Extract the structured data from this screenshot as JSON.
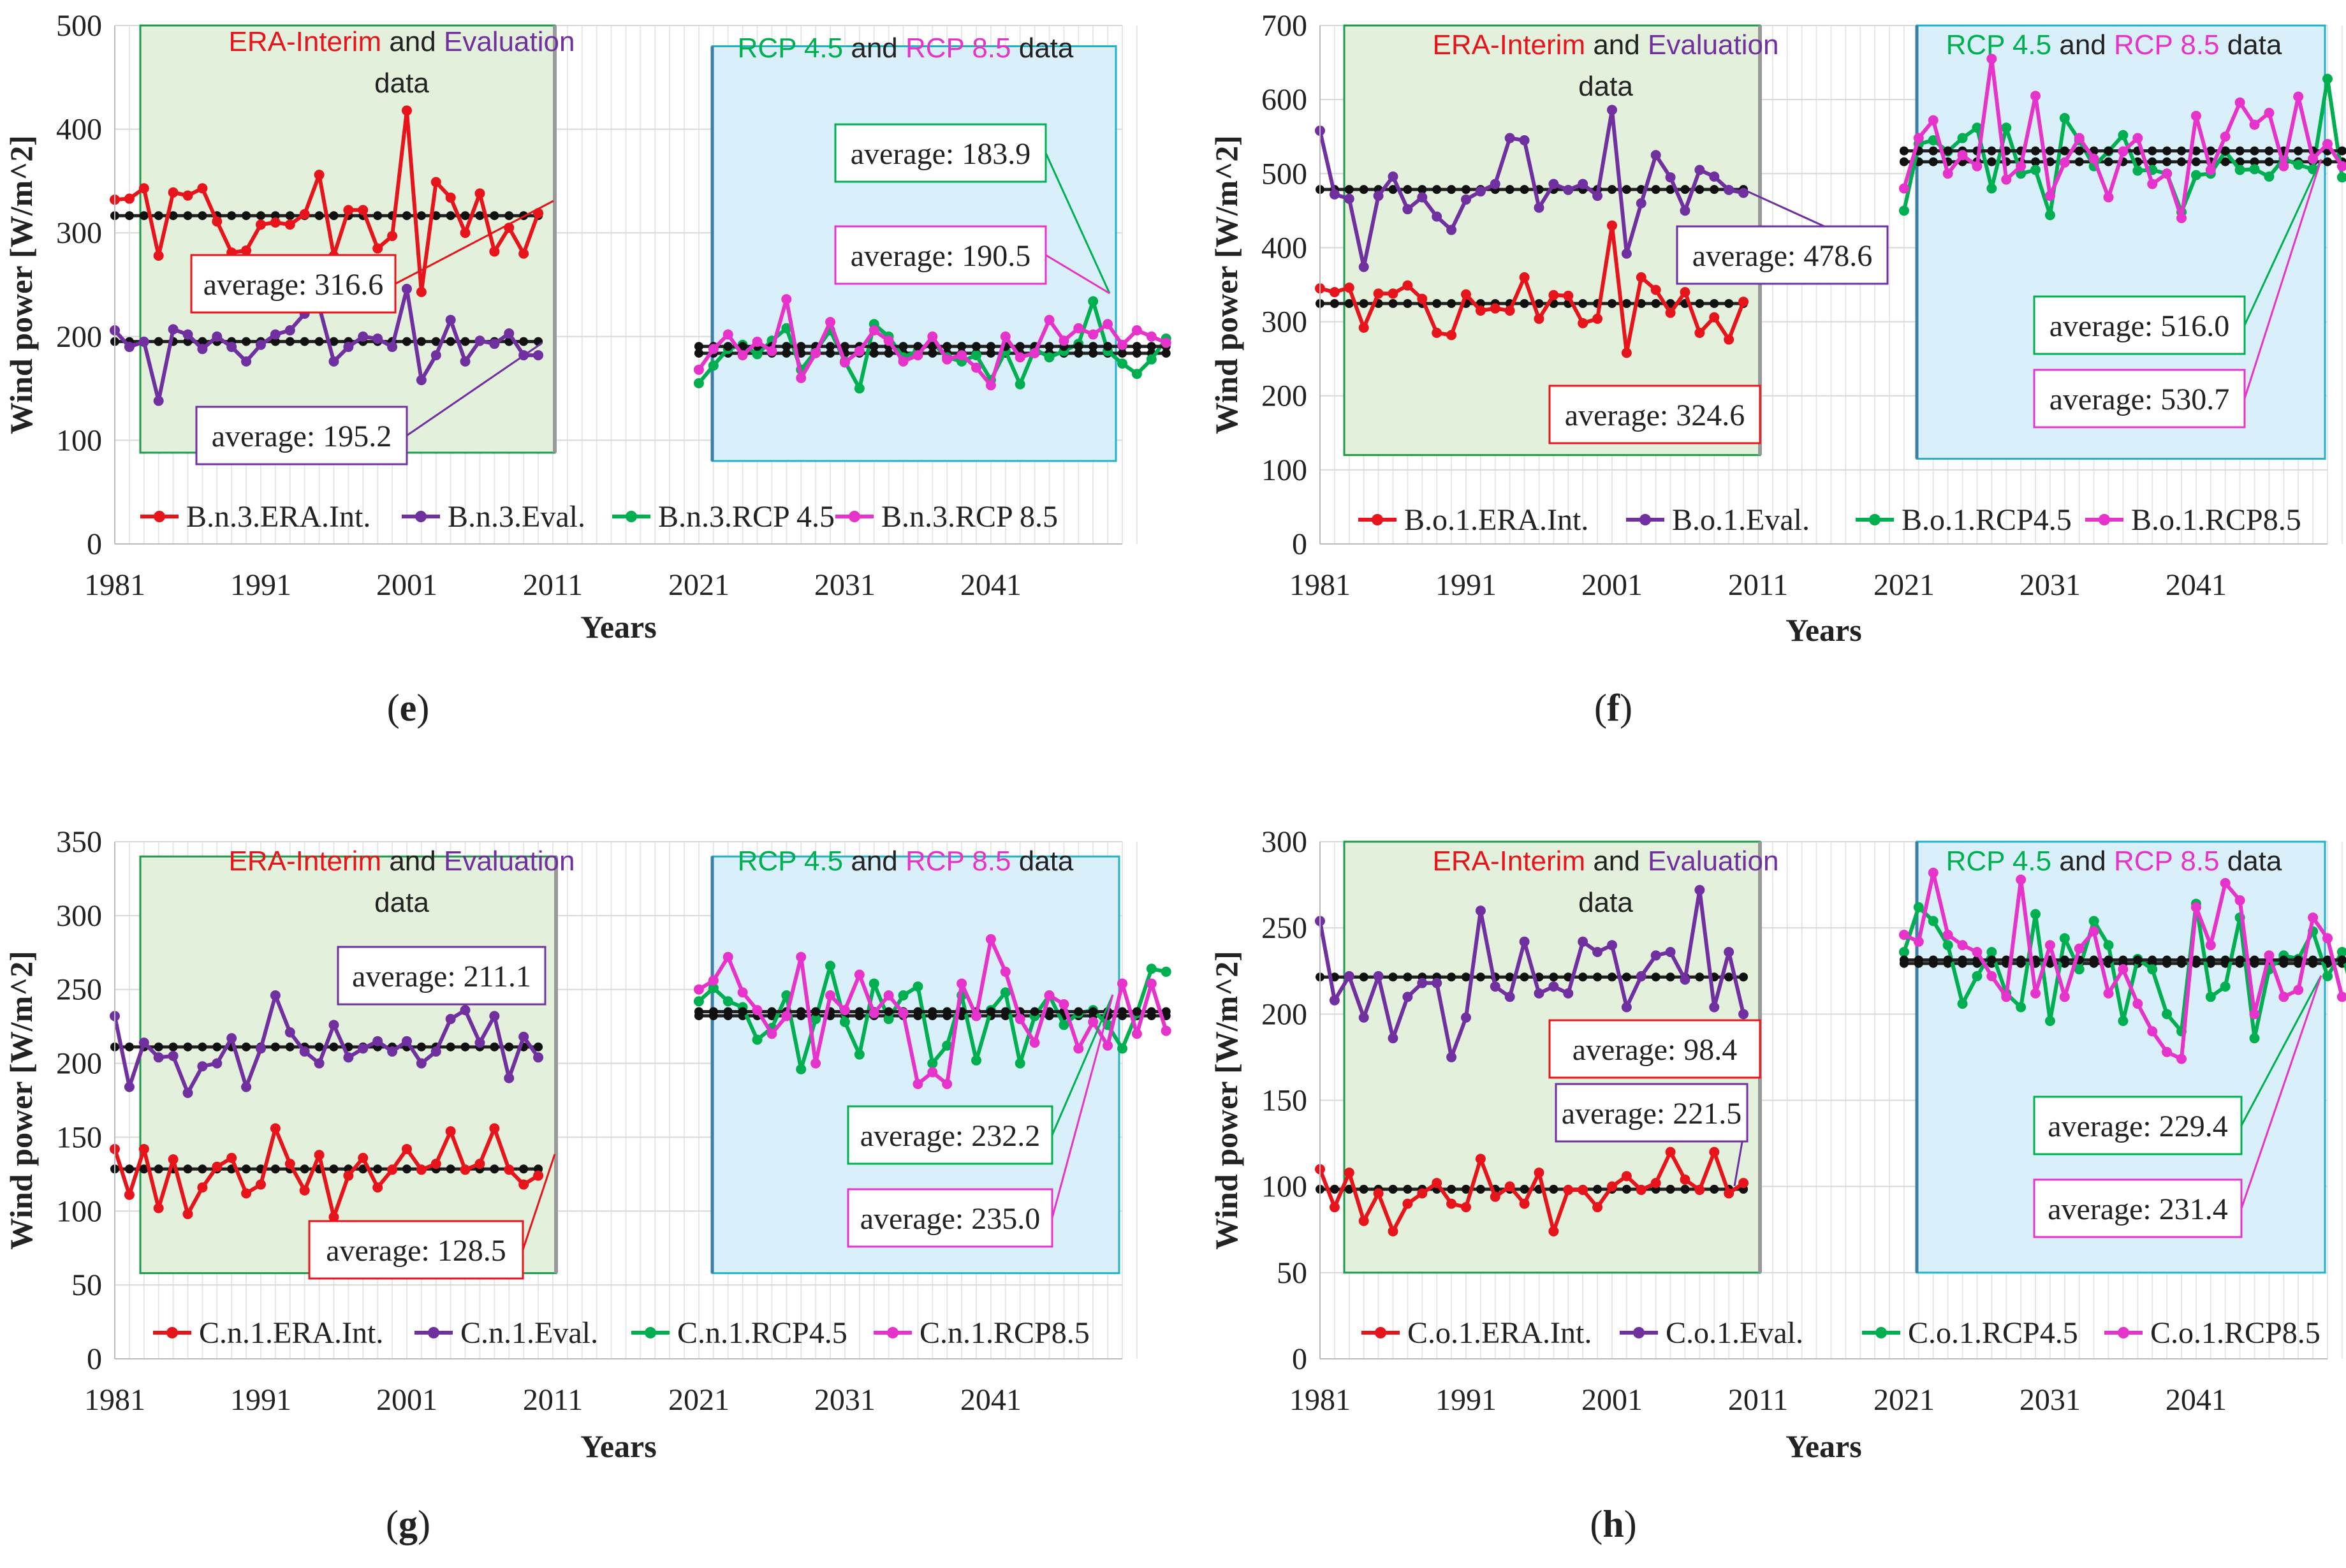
{
  "chart_data": [
    {
      "panel_label": "(e)",
      "type": "line",
      "xlabel": "Years",
      "ylabel": "Wind power [W/m^2]",
      "xlim": [
        1981,
        2050
      ],
      "xticks": [
        "1981",
        "1991",
        "2001",
        "2011",
        "2021",
        "2031",
        "2041"
      ],
      "ylim": [
        0,
        500
      ],
      "yticks": [
        "0",
        "100",
        "200",
        "300",
        "400",
        "500"
      ],
      "box_left_ylim": [
        88,
        500
      ],
      "box_right_ylim": [
        80,
        480
      ],
      "box_left_title": [
        "ERA-Interim",
        "and",
        "Evaluation",
        "data"
      ],
      "box_right_title": [
        "RCP 4.5",
        "and",
        "RCP 8.5",
        "data"
      ],
      "series": [
        {
          "name": "B.n.3.ERA.Int.",
          "color": "#e8141b",
          "start": 1981,
          "average": 316.6,
          "avg_label": "average: 316.6",
          "values": [
            332,
            333,
            343,
            278,
            339,
            336,
            343,
            311,
            281,
            283,
            308,
            310,
            308,
            318,
            356,
            278,
            322,
            322,
            285,
            297,
            418,
            243,
            349,
            334,
            300,
            338,
            282,
            305,
            280,
            319
          ]
        },
        {
          "name": "B.n.3.Eval.",
          "color": "#7030a0",
          "start": 1981,
          "average": 195.2,
          "avg_label": "average: 195.2",
          "values": [
            206,
            190,
            195,
            138,
            207,
            202,
            188,
            200,
            190,
            176,
            192,
            202,
            206,
            222,
            229,
            176,
            190,
            200,
            198,
            190,
            246,
            158,
            182,
            216,
            176,
            196,
            193,
            203,
            182,
            182
          ]
        },
        {
          "name": "B.n.3.RCP 4.5",
          "color": "#00b050",
          "start": 2021,
          "average": 183.9,
          "avg_label": "average: 183.9",
          "values": [
            155,
            172,
            188,
            192,
            183,
            196,
            208,
            168,
            186,
            206,
            176,
            150,
            212,
            200,
            180,
            186,
            194,
            180,
            176,
            182,
            158,
            186,
            154,
            188,
            180,
            186,
            193,
            234,
            186,
            174,
            164,
            178,
            198
          ]
        },
        {
          "name": "B.n.3.RCP 8.5",
          "color": "#e633cc",
          "start": 2021,
          "average": 190.5,
          "avg_label": "average: 190.5",
          "values": [
            168,
            188,
            202,
            182,
            195,
            186,
            236,
            160,
            184,
            214,
            175,
            186,
            206,
            196,
            176,
            182,
            200,
            178,
            182,
            170,
            153,
            200,
            180,
            184,
            216,
            196,
            208,
            202,
            212,
            192,
            206,
            200,
            194
          ]
        }
      ]
    },
    {
      "panel_label": "(f)",
      "type": "line",
      "xlabel": "Years",
      "ylabel": "Wind power [W/m^2]",
      "xlim": [
        1981,
        2050
      ],
      "xticks": [
        "1981",
        "1991",
        "2001",
        "2011",
        "2021",
        "2031",
        "2041"
      ],
      "ylim": [
        0,
        700
      ],
      "yticks": [
        "0",
        "100",
        "200",
        "300",
        "400",
        "500",
        "600",
        "700"
      ],
      "box_left_ylim": [
        120,
        700
      ],
      "box_right_ylim": [
        115,
        700
      ],
      "box_left_title": [
        "ERA-Interim",
        "and",
        "Evaluation",
        "data"
      ],
      "box_right_title": [
        "RCP 4.5",
        "and",
        "RCP 8.5",
        "data"
      ],
      "series": [
        {
          "name": "B.o.1.ERA.Int.",
          "color": "#e8141b",
          "start": 1981,
          "average": 324.6,
          "avg_label": "average: 324.6",
          "values": [
            345,
            340,
            346,
            292,
            338,
            338,
            349,
            331,
            285,
            282,
            337,
            315,
            318,
            315,
            360,
            304,
            336,
            335,
            298,
            304,
            430,
            258,
            360,
            343,
            312,
            340,
            285,
            306,
            276,
            327
          ]
        },
        {
          "name": "B.o.1.Eval.",
          "color": "#7030a0",
          "start": 1981,
          "average": 478.6,
          "avg_label": "average: 478.6",
          "values": [
            558,
            472,
            466,
            374,
            470,
            496,
            452,
            468,
            442,
            424,
            465,
            476,
            486,
            548,
            545,
            454,
            486,
            478,
            486,
            470,
            586,
            392,
            460,
            525,
            495,
            450,
            505,
            496,
            478,
            474
          ]
        },
        {
          "name": "B.o.1.RCP4.5",
          "color": "#00b050",
          "start": 2021,
          "average": 516.0,
          "avg_label": "average: 516.0",
          "values": [
            450,
            540,
            545,
            530,
            548,
            562,
            480,
            562,
            500,
            505,
            444,
            575,
            545,
            510,
            530,
            552,
            504,
            505,
            500,
            448,
            498,
            500,
            530,
            505,
            506,
            496,
            520,
            512,
            506,
            628,
            495,
            486,
            562
          ]
        },
        {
          "name": "B.o.1.RCP8.5",
          "color": "#e633cc",
          "start": 2021,
          "average": 530.7,
          "avg_label": "average: 530.7",
          "values": [
            480,
            548,
            572,
            500,
            525,
            510,
            655,
            492,
            510,
            605,
            470,
            515,
            548,
            520,
            468,
            530,
            548,
            486,
            500,
            440,
            578,
            505,
            550,
            596,
            566,
            582,
            510,
            604,
            520,
            540,
            510,
            520,
            505
          ]
        }
      ]
    },
    {
      "panel_label": "(g)",
      "type": "line",
      "xlabel": "Years",
      "ylabel": "Wind power [W/m^2]",
      "xlim": [
        1981,
        2050
      ],
      "xticks": [
        "1981",
        "1991",
        "2001",
        "2011",
        "2021",
        "2031",
        "2041"
      ],
      "ylim": [
        0,
        350
      ],
      "yticks": [
        "0",
        "50",
        "100",
        "150",
        "200",
        "250",
        "300",
        "350"
      ],
      "box_left_ylim": [
        58,
        340
      ],
      "box_right_ylim": [
        58,
        340
      ],
      "box_left_title": [
        "ERA-Interim",
        "and",
        "Evaluation",
        "data"
      ],
      "box_right_title": [
        "RCP 4.5",
        "and",
        "RCP 8.5",
        "data"
      ],
      "series": [
        {
          "name": "C.n.1.ERA.Int.",
          "color": "#e8141b",
          "start": 1981,
          "average": 128.5,
          "avg_label": "average: 128.5",
          "values": [
            142,
            111,
            142,
            102,
            135,
            98,
            116,
            130,
            136,
            112,
            118,
            156,
            132,
            114,
            138,
            96,
            124,
            136,
            116,
            128,
            142,
            128,
            132,
            154,
            128,
            132,
            156,
            128,
            118,
            124
          ]
        },
        {
          "name": "C.n.1.Eval.",
          "color": "#7030a0",
          "start": 1981,
          "average": 211.1,
          "avg_label": "average: 211.1",
          "values": [
            232,
            184,
            214,
            204,
            205,
            180,
            198,
            200,
            217,
            184,
            210,
            246,
            221,
            208,
            200,
            226,
            204,
            210,
            215,
            208,
            215,
            200,
            208,
            230,
            236,
            214,
            232,
            190,
            218,
            204
          ]
        },
        {
          "name": "C.n.1.RCP4.5",
          "color": "#00b050",
          "start": 2021,
          "average": 232.2,
          "avg_label": "average: 232.2",
          "values": [
            242,
            251,
            242,
            238,
            216,
            224,
            246,
            196,
            230,
            266,
            228,
            206,
            254,
            230,
            246,
            252,
            200,
            212,
            246,
            202,
            236,
            248,
            200,
            232,
            246,
            226,
            234,
            236,
            226,
            210,
            234,
            264,
            262
          ]
        },
        {
          "name": "C.n.1.RCP8.5",
          "color": "#e633cc",
          "start": 2021,
          "average": 235.0,
          "avg_label": "average: 235.0",
          "values": [
            250,
            256,
            272,
            248,
            236,
            220,
            232,
            272,
            200,
            246,
            236,
            260,
            234,
            246,
            234,
            186,
            194,
            186,
            254,
            232,
            284,
            262,
            230,
            214,
            246,
            240,
            210,
            228,
            212,
            254,
            220,
            254,
            222
          ]
        }
      ]
    },
    {
      "panel_label": "(h)",
      "type": "line",
      "xlabel": "Years",
      "ylabel": "Wind power [W/m^2]",
      "xlim": [
        1981,
        2050
      ],
      "xticks": [
        "1981",
        "1991",
        "2001",
        "2011",
        "2021",
        "2031",
        "2041"
      ],
      "ylim": [
        0,
        300
      ],
      "yticks": [
        "0",
        "50",
        "100",
        "150",
        "200",
        "250",
        "300"
      ],
      "box_left_ylim": [
        50,
        300
      ],
      "box_right_ylim": [
        50,
        300
      ],
      "box_left_title": [
        "ERA-Interim",
        "and",
        "Evaluation",
        "data"
      ],
      "box_right_title": [
        "RCP 4.5",
        "and",
        "RCP 8.5",
        "data"
      ],
      "series": [
        {
          "name": "C.o.1.ERA.Int.",
          "color": "#e8141b",
          "start": 1981,
          "average": 98.4,
          "avg_label": "average: 98.4",
          "values": [
            110,
            88,
            108,
            80,
            96,
            74,
            90,
            96,
            102,
            90,
            88,
            116,
            94,
            100,
            90,
            108,
            74,
            98,
            98,
            88,
            100,
            106,
            98,
            102,
            120,
            104,
            98,
            120,
            96,
            102
          ]
        },
        {
          "name": "C.o.1.Eval.",
          "color": "#7030a0",
          "start": 1981,
          "average": 221.5,
          "avg_label": "average: 221.5",
          "values": [
            254,
            208,
            222,
            198,
            222,
            186,
            210,
            218,
            218,
            175,
            198,
            260,
            216,
            210,
            242,
            212,
            216,
            212,
            242,
            236,
            240,
            204,
            222,
            234,
            236,
            220,
            272,
            204,
            236,
            200
          ]
        },
        {
          "name": "C.o.1.RCP4.5",
          "color": "#00b050",
          "start": 2021,
          "average": 229.4,
          "avg_label": "average: 229.4",
          "values": [
            236,
            262,
            254,
            240,
            206,
            222,
            236,
            212,
            204,
            258,
            196,
            244,
            226,
            254,
            240,
            196,
            232,
            226,
            200,
            190,
            264,
            210,
            216,
            256,
            186,
            226,
            234,
            232,
            248,
            222,
            236,
            204,
            272
          ]
        },
        {
          "name": "C.o.1.RCP8.5",
          "color": "#e633cc",
          "start": 2021,
          "average": 231.4,
          "avg_label": "average: 231.4",
          "values": [
            246,
            242,
            282,
            246,
            240,
            236,
            222,
            210,
            278,
            212,
            240,
            210,
            238,
            248,
            212,
            226,
            206,
            190,
            178,
            174,
            262,
            240,
            276,
            266,
            200,
            234,
            210,
            214,
            256,
            244,
            210,
            208,
            242
          ]
        }
      ]
    }
  ]
}
